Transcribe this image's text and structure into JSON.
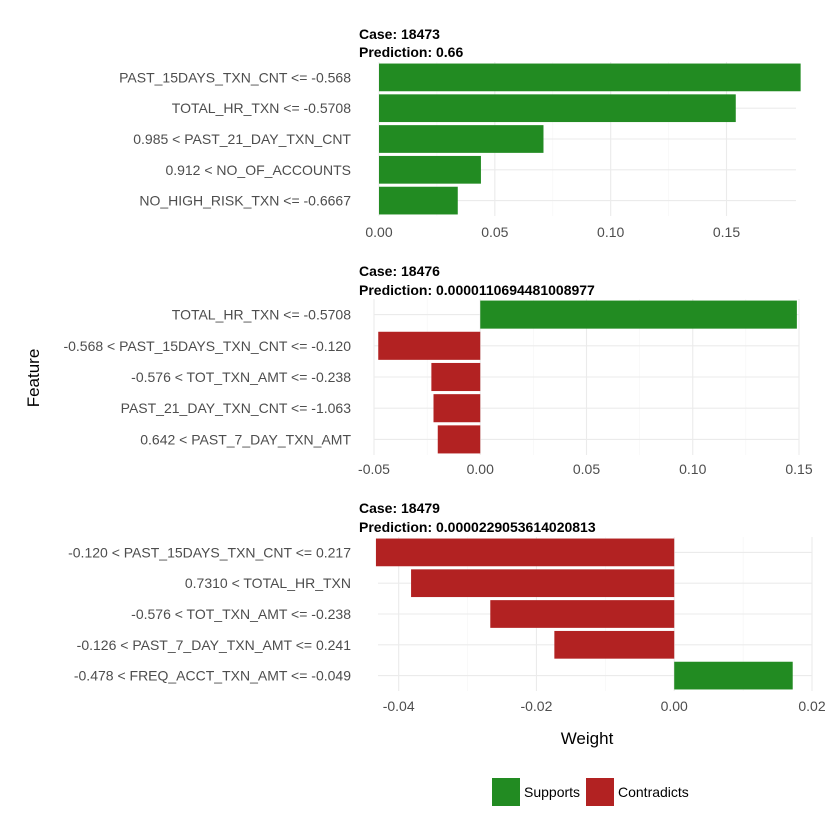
{
  "chart_data": {
    "type": "bar",
    "orientation": "horizontal",
    "xlabel": "Weight",
    "ylabel": "Feature",
    "colors": {
      "Supports": "#228B22",
      "Contradicts": "#B22222"
    },
    "legend": {
      "position": "bottom",
      "items": [
        "Supports",
        "Contradicts"
      ]
    },
    "panels": [
      {
        "case_label": "Case: 18473",
        "prediction_label": "Prediction: 0.66",
        "xlim": [
          0,
          0.18
        ],
        "ticks": [
          0.0,
          0.05,
          0.1,
          0.15
        ],
        "tick_labels": [
          "0.00",
          "0.05",
          "0.10",
          "0.15"
        ],
        "bars": [
          {
            "feature": "PAST_15DAYS_TXN_CNT <= -0.568",
            "weight": 0.182,
            "support": "Supports"
          },
          {
            "feature": "TOTAL_HR_TXN <= -0.5708",
            "weight": 0.154,
            "support": "Supports"
          },
          {
            "feature": "0.985 < PAST_21_DAY_TXN_CNT",
            "weight": 0.071,
            "support": "Supports"
          },
          {
            "feature": "0.912 < NO_OF_ACCOUNTS",
            "weight": 0.044,
            "support": "Supports"
          },
          {
            "feature": "NO_HIGH_RISK_TXN <= -0.6667",
            "weight": 0.034,
            "support": "Supports"
          }
        ]
      },
      {
        "case_label": "Case: 18476",
        "prediction_label": "Prediction: 0.0000110694481008977",
        "xlim": [
          -0.05,
          0.15
        ],
        "ticks": [
          -0.05,
          0.0,
          0.05,
          0.1,
          0.15
        ],
        "tick_labels": [
          "-0.05",
          "0.00",
          "0.05",
          "0.10",
          "0.15"
        ],
        "bars": [
          {
            "feature": "TOTAL_HR_TXN <= -0.5708",
            "weight": 0.149,
            "support": "Supports"
          },
          {
            "feature": "-0.568 < PAST_15DAYS_TXN_CNT <= -0.120",
            "weight": -0.048,
            "support": "Contradicts"
          },
          {
            "feature": "-0.576 < TOT_TXN_AMT <= -0.238",
            "weight": -0.023,
            "support": "Contradicts"
          },
          {
            "feature": "PAST_21_DAY_TXN_CNT <= -1.063",
            "weight": -0.022,
            "support": "Contradicts"
          },
          {
            "feature": "0.642 < PAST_7_DAY_TXN_AMT",
            "weight": -0.02,
            "support": "Contradicts"
          }
        ]
      },
      {
        "case_label": "Case: 18479",
        "prediction_label": "Prediction: 0.0000229053614020813",
        "xlim": [
          -0.043,
          0.02
        ],
        "ticks": [
          -0.04,
          -0.02,
          0.0,
          0.02
        ],
        "tick_labels": [
          "-0.04",
          "-0.02",
          "0.00",
          "0.02"
        ],
        "bars": [
          {
            "feature": "-0.120 < PAST_15DAYS_TXN_CNT <= 0.217",
            "weight": -0.0433,
            "support": "Contradicts"
          },
          {
            "feature": "0.7310 < TOTAL_HR_TXN",
            "weight": -0.0382,
            "support": "Contradicts"
          },
          {
            "feature": "-0.576 < TOT_TXN_AMT <= -0.238",
            "weight": -0.0267,
            "support": "Contradicts"
          },
          {
            "feature": "-0.126 < PAST_7_DAY_TXN_AMT <= 0.241",
            "weight": -0.0174,
            "support": "Contradicts"
          },
          {
            "feature": "-0.478 < FREQ_ACCT_TXN_AMT <= -0.049",
            "weight": 0.0172,
            "support": "Supports"
          }
        ]
      }
    ]
  }
}
